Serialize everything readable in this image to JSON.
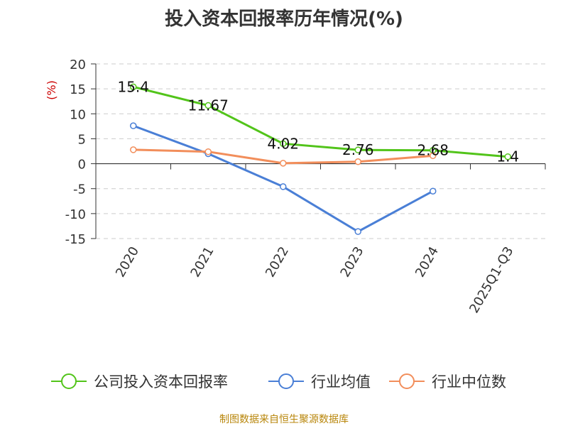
{
  "chart_data": {
    "type": "line",
    "title": "投入资本回报率历年情况(%)",
    "ylabel": "(%)",
    "ylim": [
      -15,
      20
    ],
    "yticks": [
      20,
      15,
      10,
      5,
      0,
      -5,
      -10,
      -15
    ],
    "grid": true,
    "legend_position": "bottom",
    "categories": [
      "2020",
      "2021",
      "2022",
      "2023",
      "2024",
      "2025Q1-Q3"
    ],
    "series": [
      {
        "name": "公司投入资本回报率",
        "color": "#52c41a",
        "values": [
          15.4,
          11.67,
          4.02,
          2.76,
          2.68,
          1.4
        ],
        "labels": [
          "15.4",
          "11.67",
          "4.02",
          "2.76",
          "2.68",
          "1.4"
        ]
      },
      {
        "name": "行业均值",
        "color": "#4a7fd6",
        "values": [
          7.6,
          2.0,
          -4.6,
          -13.6,
          -5.5,
          null
        ]
      },
      {
        "name": "行业中位数",
        "color": "#f28e5b",
        "values": [
          2.8,
          2.4,
          0.1,
          0.4,
          1.6,
          null
        ]
      }
    ]
  },
  "footer": {
    "source": "制图数据来自恒生聚源数据库"
  }
}
